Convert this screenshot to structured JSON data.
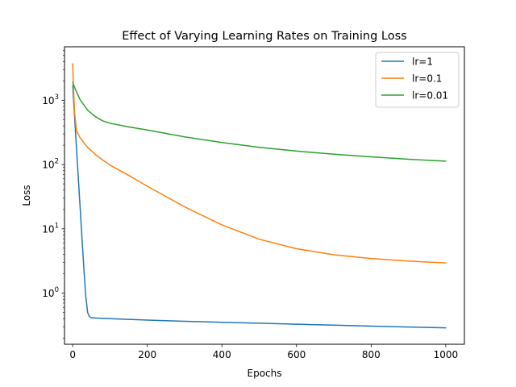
{
  "chart_data": {
    "type": "line",
    "title": "Effect of Varying Learning Rates on Training Loss",
    "xlabel": "Epochs",
    "ylabel": "Loss",
    "xlim": [
      -22,
      1050
    ],
    "ylim": [
      0.16,
      6800
    ],
    "yscale": "log",
    "grid": false,
    "legend_position": "top-right",
    "x_ticks": [
      {
        "value": 0,
        "label": "0"
      },
      {
        "value": 200,
        "label": "200"
      },
      {
        "value": 400,
        "label": "400"
      },
      {
        "value": 600,
        "label": "600"
      },
      {
        "value": 800,
        "label": "800"
      },
      {
        "value": 1000,
        "label": "1000"
      }
    ],
    "y_ticks": [
      {
        "value": 1,
        "base": "10",
        "exp": "0"
      },
      {
        "value": 10,
        "base": "10",
        "exp": "1"
      },
      {
        "value": 100,
        "base": "10",
        "exp": "2"
      },
      {
        "value": 1000,
        "base": "10",
        "exp": "3"
      }
    ],
    "series": [
      {
        "name": "lr=1",
        "color": "#1f77b4",
        "x": [
          0,
          5,
          10,
          15,
          20,
          25,
          30,
          35,
          40,
          45,
          50,
          60,
          80,
          100,
          150,
          200,
          300,
          400,
          500,
          600,
          700,
          800,
          900,
          1000
        ],
        "y": [
          1700,
          560,
          185,
          62,
          21,
          7,
          2.4,
          0.9,
          0.5,
          0.43,
          0.415,
          0.41,
          0.405,
          0.4,
          0.39,
          0.38,
          0.365,
          0.352,
          0.34,
          0.328,
          0.318,
          0.307,
          0.297,
          0.288
        ]
      },
      {
        "name": "lr=0.1",
        "color": "#ff7f0e",
        "x": [
          0,
          2,
          5,
          10,
          20,
          40,
          60,
          80,
          100,
          150,
          200,
          300,
          400,
          500,
          600,
          700,
          800,
          900,
          1000
        ],
        "y": [
          3700,
          1600,
          650,
          340,
          260,
          185,
          145,
          118,
          98,
          68,
          46,
          22,
          11.5,
          6.9,
          4.9,
          3.95,
          3.45,
          3.15,
          2.95
        ]
      },
      {
        "name": "lr=0.01",
        "color": "#2ca02c",
        "x": [
          0,
          10,
          20,
          40,
          60,
          80,
          100,
          150,
          200,
          300,
          400,
          500,
          600,
          700,
          800,
          900,
          1000
        ],
        "y": [
          1900,
          1350,
          1020,
          700,
          560,
          480,
          440,
          385,
          345,
          270,
          220,
          185,
          162,
          145,
          132,
          121,
          113
        ]
      }
    ]
  }
}
